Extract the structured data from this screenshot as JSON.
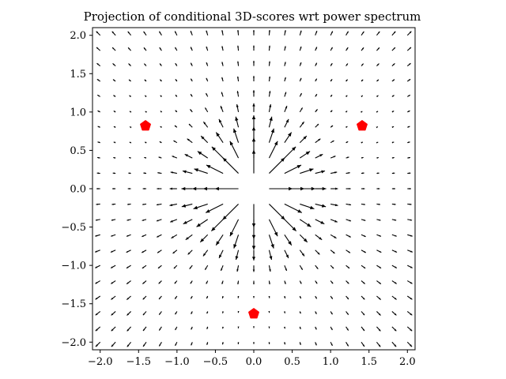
{
  "chart_data": {
    "type": "quiver",
    "title": "Projection of conditional 3D-scores wrt power spectrum",
    "xlabel": "",
    "ylabel": "",
    "xlim": [
      -2.1,
      2.1
    ],
    "ylim": [
      -2.1,
      2.1
    ],
    "x_ticks": [
      -2.0,
      -1.5,
      -1.0,
      -0.5,
      0.0,
      0.5,
      1.0,
      1.5,
      2.0
    ],
    "y_ticks": [
      -2.0,
      -1.5,
      -1.0,
      -0.5,
      0.0,
      0.5,
      1.0,
      1.5,
      2.0
    ],
    "x_tick_labels": [
      "−2.0",
      "−1.5",
      "−1.0",
      "−0.5",
      "0.0",
      "0.5",
      "1.0",
      "1.5",
      "2.0"
    ],
    "y_tick_labels": [
      "−2.0",
      "−1.5",
      "−1.0",
      "−0.5",
      "0.0",
      "0.5",
      "1.0",
      "1.5",
      "2.0"
    ],
    "grid": false,
    "vector_field": {
      "grid_x_range": [
        -2.0,
        2.0
      ],
      "grid_y_range": [
        -2.0,
        2.0
      ],
      "grid_count": 21,
      "arrow_color": "#000000",
      "pattern": "arrows point radially away from the origin; longest near the center, shortest close to the three marked points"
    },
    "markers": [
      {
        "x": -1.41,
        "y": 0.82,
        "color": "#ff0000",
        "shape": "pentagon"
      },
      {
        "x": 1.41,
        "y": 0.82,
        "color": "#ff0000",
        "shape": "pentagon"
      },
      {
        "x": 0.0,
        "y": -1.63,
        "color": "#ff0000",
        "shape": "pentagon"
      }
    ]
  }
}
